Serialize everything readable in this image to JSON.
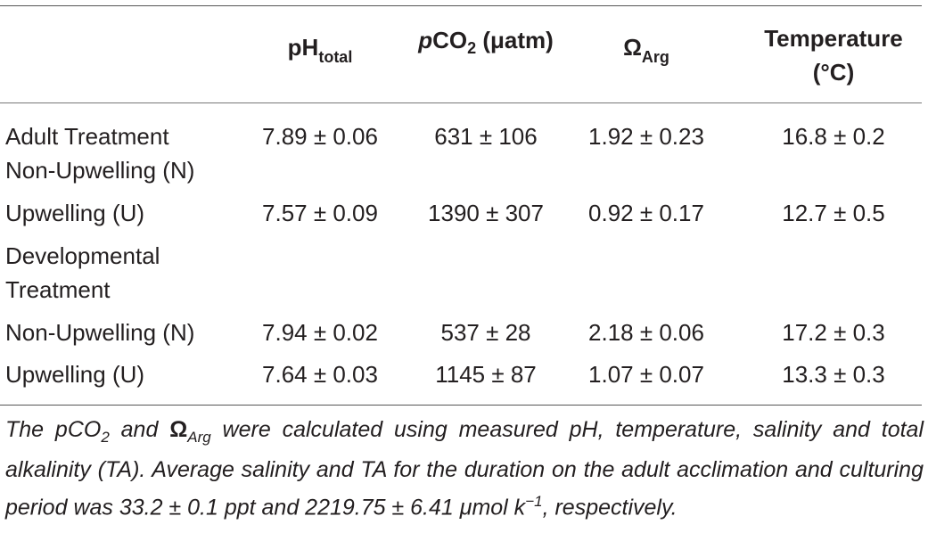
{
  "headers": {
    "ph_main": "pH",
    "ph_sub": "total",
    "pco2_italic": "p",
    "pco2_main": "CO",
    "pco2_sub": "2",
    "pco2_unit": " (μatm)",
    "omega_main": "Ω",
    "omega_sub": "Arg",
    "temp_line1": "Temperature",
    "temp_line2": "(°C)"
  },
  "rows": [
    {
      "label": [
        "Adult Treatment",
        "Non-Upwelling (N)"
      ],
      "ph": "7.89 ± 0.06",
      "pco2": "631 ± 106",
      "omega": "1.92 ± 0.23",
      "temp": "16.8 ± 0.2"
    },
    {
      "label": [
        "Upwelling (U)"
      ],
      "ph": "7.57 ± 0.09",
      "pco2": "1390 ± 307",
      "omega": "0.92 ± 0.17",
      "temp": "12.7 ± 0.5"
    },
    {
      "label": [
        "Developmental",
        "Treatment"
      ],
      "ph": "",
      "pco2": "",
      "omega": "",
      "temp": ""
    },
    {
      "label": [
        "Non-Upwelling (N)"
      ],
      "ph": "7.94 ± 0.02",
      "pco2": "537 ± 28",
      "omega": "2.18 ± 0.06",
      "temp": "17.2 ± 0.3"
    },
    {
      "label": [
        "Upwelling (U)"
      ],
      "ph": "7.64 ± 0.03",
      "pco2": "1145 ± 87",
      "omega": "1.07 ± 0.07",
      "temp": "13.3 ± 0.3"
    }
  ],
  "footnote": {
    "p1": "The pCO",
    "sub1": "2",
    "p2": " and ",
    "omega": "Ω",
    "sub2": "Arg",
    "p3": " were calculated using measured pH, temperature, salinity and total alkalinity (TA). Average salinity and TA for the duration on the adult acclimation and culturing period was 33.2 ± 0.1 ppt and 2219.75 ± 6.41 μmol k",
    "sup": "−1",
    "p4": ", respectively."
  }
}
